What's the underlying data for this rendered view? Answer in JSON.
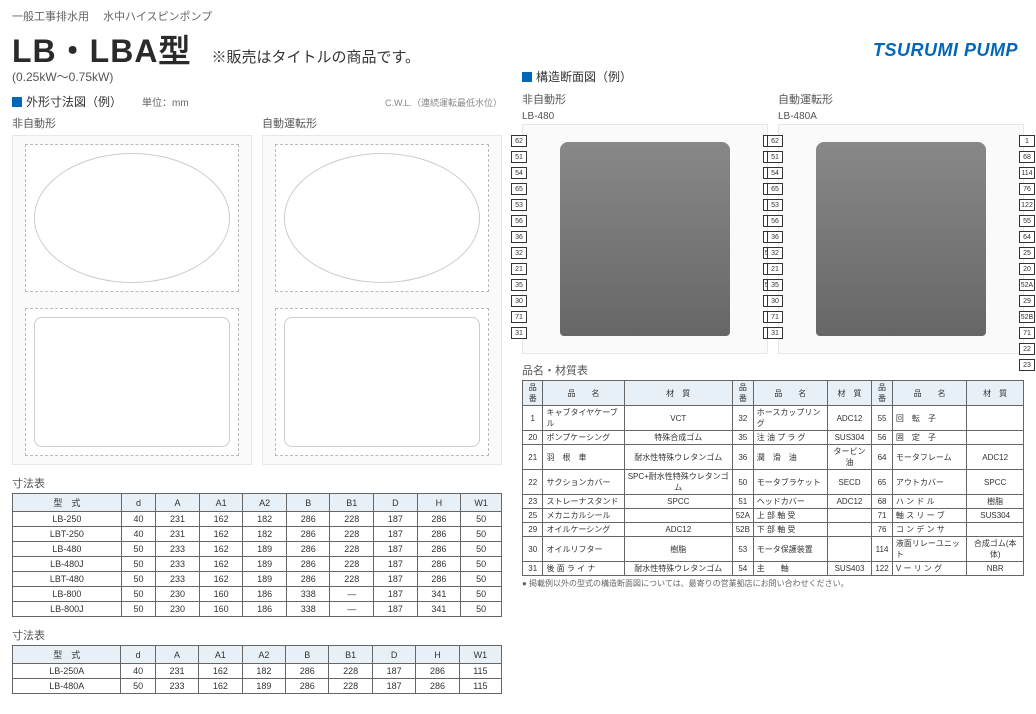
{
  "header_sub_left": "一般工事排水用",
  "header_sub_right": "水中ハイスピンポンプ",
  "model_title": "LB・LBA型",
  "title_note": "※販売はタイトルの商品です。",
  "kw_range": "(0.25kW～0.75kW)",
  "brand": "TSURUMI PUMP",
  "colors": {
    "accent": "#0068b7",
    "th_bg": "#e8f0f7"
  },
  "left": {
    "section_title": "外形寸法図（例）",
    "section_suffix": "単位：mm",
    "cwl_note": "C.W.L.（連続運転最低水位）",
    "col1_label": "非自動形",
    "col2_label": "自動運転形",
    "table1_title": "寸法表",
    "table2_title": "寸法表",
    "dim_headers": [
      "型　式",
      "d",
      "A",
      "A1",
      "A2",
      "B",
      "B1",
      "D",
      "H",
      "W1"
    ],
    "dim_rows1": [
      [
        "LB-250",
        "40",
        "231",
        "162",
        "182",
        "286",
        "228",
        "187",
        "286",
        "50"
      ],
      [
        "LBT-250",
        "40",
        "231",
        "162",
        "182",
        "286",
        "228",
        "187",
        "286",
        "50"
      ],
      [
        "LB-480",
        "50",
        "233",
        "162",
        "189",
        "286",
        "228",
        "187",
        "286",
        "50"
      ],
      [
        "LB-480J",
        "50",
        "233",
        "162",
        "189",
        "286",
        "228",
        "187",
        "286",
        "50"
      ],
      [
        "LBT-480",
        "50",
        "233",
        "162",
        "189",
        "286",
        "228",
        "187",
        "286",
        "50"
      ],
      [
        "LB-800",
        "50",
        "230",
        "160",
        "186",
        "338",
        "—",
        "187",
        "341",
        "50"
      ],
      [
        "LB-800J",
        "50",
        "230",
        "160",
        "186",
        "338",
        "—",
        "187",
        "341",
        "50"
      ]
    ],
    "dim_rows2": [
      [
        "LB-250A",
        "40",
        "231",
        "162",
        "182",
        "286",
        "228",
        "187",
        "286",
        "115"
      ],
      [
        "LB-480A",
        "50",
        "233",
        "162",
        "189",
        "286",
        "228",
        "187",
        "286",
        "115"
      ]
    ]
  },
  "right": {
    "section_title": "構造断面図（例）",
    "col1_label": "非自動形",
    "col1_sublabel": "LB-480",
    "col2_label": "自動運転形",
    "col2_sublabel": "LB-480A",
    "callouts_left_a": [
      "62",
      "51",
      "54",
      "65",
      "53",
      "56",
      "36",
      "32",
      "21",
      "35",
      "30",
      "71",
      "31"
    ],
    "callouts_right_a": [
      "1",
      "68",
      "76",
      "55",
      "64",
      "25",
      "20",
      "52A",
      "29",
      "52B",
      "71",
      "22",
      "23"
    ],
    "callouts_left_b": [
      "62",
      "51",
      "54",
      "65",
      "53",
      "56",
      "36",
      "32",
      "21",
      "35",
      "30",
      "71",
      "31"
    ],
    "callouts_right_b": [
      "1",
      "68",
      "114",
      "76",
      "122",
      "55",
      "64",
      "25",
      "20",
      "52A",
      "29",
      "52B",
      "71",
      "22",
      "23"
    ],
    "parts_title": "品名・材質表",
    "parts_headers": [
      "品番",
      "品　　名",
      "材　質",
      "品番",
      "品　　名",
      "材　質",
      "品番",
      "品　　名",
      "材　質"
    ],
    "parts_rows": [
      [
        "1",
        "キャブタイヤケーブル",
        "VCT",
        "32",
        "ホースカップリング",
        "ADC12",
        "55",
        "回　転　子",
        ""
      ],
      [
        "20",
        "ポンプケーシング",
        "特殊合成ゴム",
        "35",
        "注 油 プ ラ グ",
        "SUS304",
        "56",
        "固　定　子",
        ""
      ],
      [
        "21",
        "羽　根　車",
        "耐水性特殊ウレタンゴム",
        "36",
        "潤　滑　油",
        "タービン油",
        "64",
        "モータフレーム",
        "ADC12"
      ],
      [
        "22",
        "サクションカバー",
        "SPC+耐水性特殊ウレタンゴム",
        "50",
        "モータブラケット",
        "SECD",
        "65",
        "アウトカバー",
        "SPCC"
      ],
      [
        "23",
        "ストレーナスタンド",
        "SPCC",
        "51",
        "ヘッドカバー",
        "ADC12",
        "68",
        "ハ ン ド ル",
        "樹脂"
      ],
      [
        "25",
        "メカニカルシール",
        "",
        "52A",
        "上 部 軸 受",
        "",
        "71",
        "軸 ス リ ー ブ",
        "SUS304"
      ],
      [
        "29",
        "オイルケーシング",
        "ADC12",
        "52B",
        "下 部 軸 受",
        "",
        "76",
        "コ ン デ ン サ",
        ""
      ],
      [
        "30",
        "オイルリフター",
        "樹脂",
        "53",
        "モータ保護装置",
        "",
        "114",
        "液面リレーユニット",
        "合成ゴム(本体)"
      ],
      [
        "31",
        "後 面 ラ イ ナ",
        "耐水性特殊ウレタンゴム",
        "54",
        "主　　軸",
        "SUS403",
        "122",
        "V ー リ ン グ",
        "NBR"
      ]
    ],
    "note": "● 掲載例以外の型式の構造断面図については、最寄りの営業拠店にお問い合わせください。"
  }
}
